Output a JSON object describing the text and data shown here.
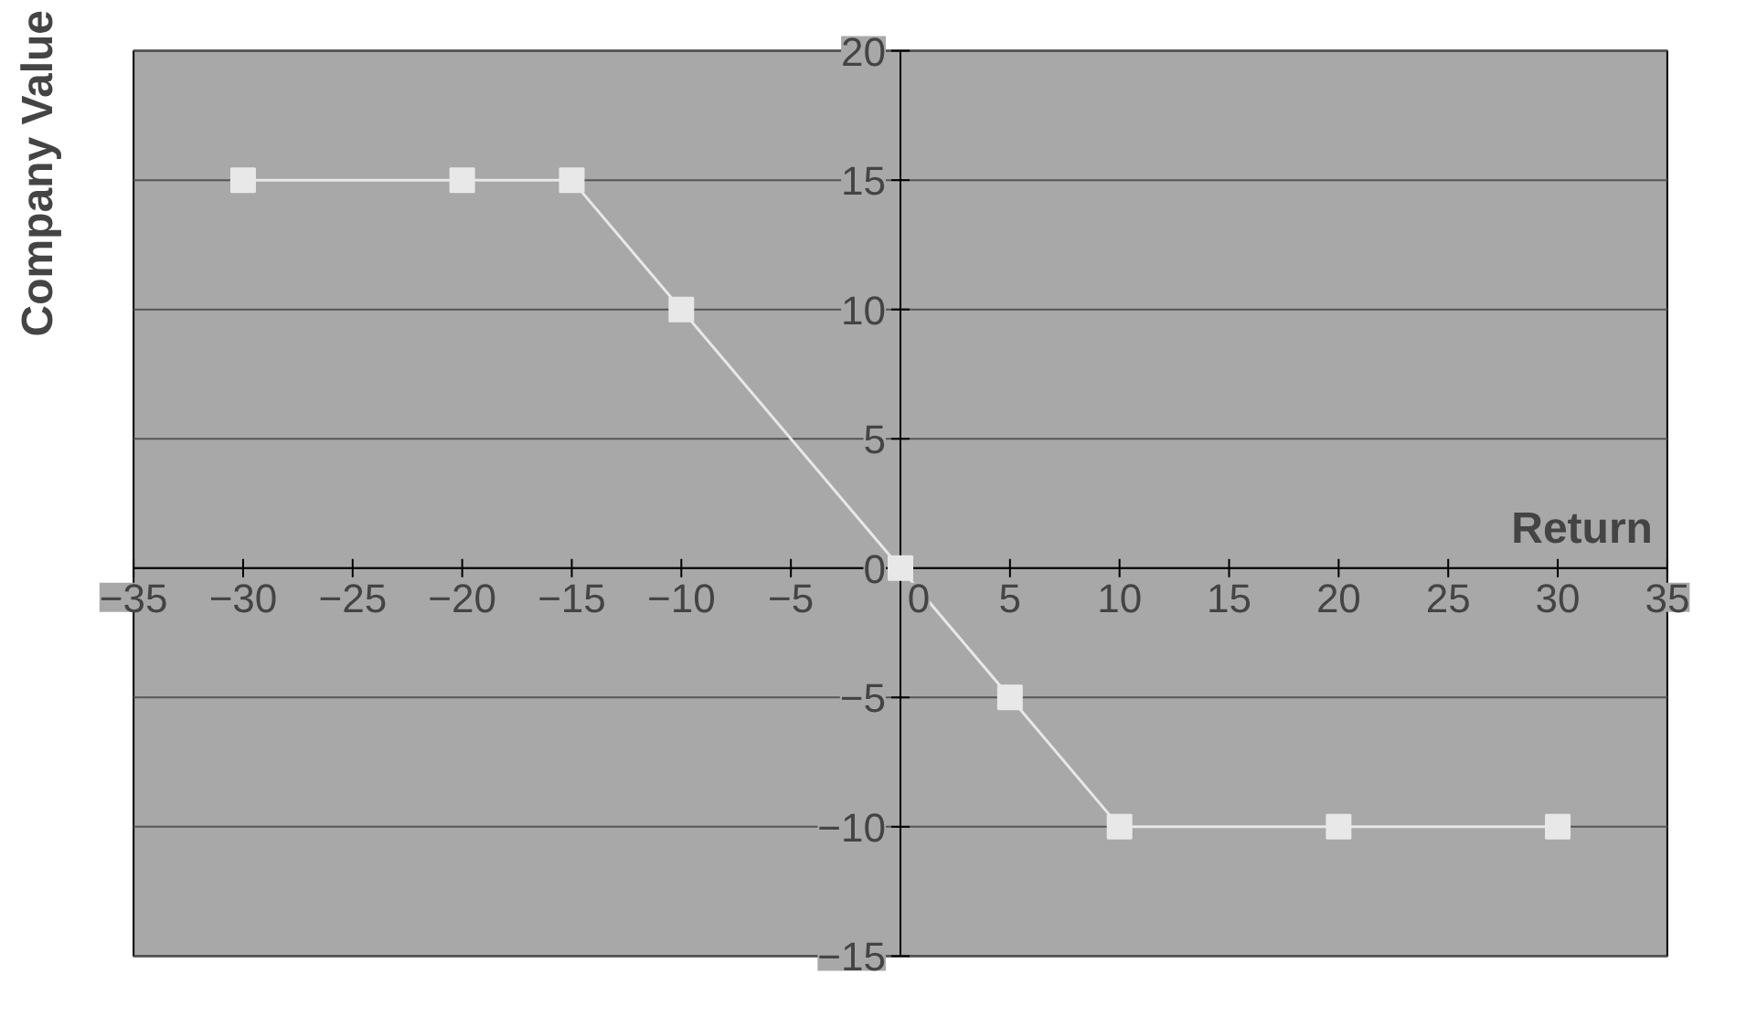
{
  "chart_data": {
    "type": "line",
    "xlabel": "Return",
    "ylabel": "Company Value",
    "x": [
      -30,
      -20,
      -15,
      -10,
      0,
      5,
      10,
      20,
      30
    ],
    "series": [
      {
        "color": "#e8e8e8",
        "values": [
          15,
          15,
          15,
          10,
          0,
          -5,
          -10,
          -10,
          -10
        ]
      }
    ],
    "xlim": [
      -35,
      35
    ],
    "ylim": [
      -15,
      20
    ],
    "xticks": [
      -35,
      -30,
      -25,
      -20,
      -15,
      -10,
      -5,
      0,
      5,
      10,
      15,
      20,
      25,
      30,
      35
    ],
    "yticks": [
      -15,
      -10,
      -5,
      0,
      5,
      10,
      15,
      20
    ],
    "grid": "y",
    "marker": "square",
    "line_style": "solid"
  }
}
